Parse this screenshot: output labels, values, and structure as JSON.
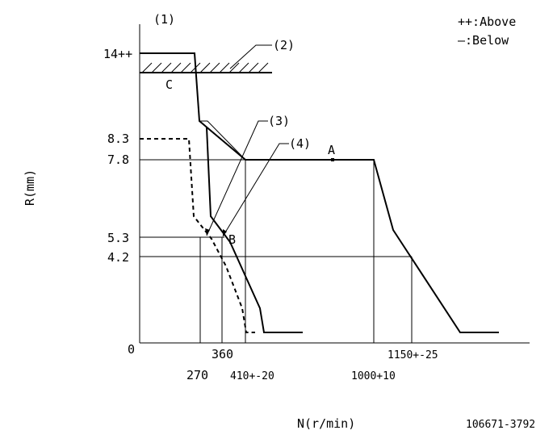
{
  "chart_data": {
    "type": "line",
    "xlabel": "N(r/min)",
    "ylabel": "R(mm)",
    "legend": {
      "above": "++:Above",
      "below": "—:Below"
    },
    "callouts": {
      "c1": "(1)",
      "c2": "(2)",
      "c3": "(3)",
      "c4": "(4)"
    },
    "points": {
      "A": "A",
      "B": "B",
      "C": "C"
    },
    "y_ticks": {
      "t14": "14++",
      "t83": "8.3",
      "t78": "7.8",
      "t53": "5.3",
      "t42": "4.2",
      "t0": "0"
    },
    "x_ticks": {
      "n270": "270",
      "n360": "360",
      "n410": "410+-20",
      "n1000": "1000+10",
      "n1150": "1150+-25"
    },
    "series": [
      {
        "name": "Above",
        "style": "solid",
        "x": [
          0,
          220,
          240,
          300,
          410,
          1000,
          1070,
          1350,
          1470
        ],
        "y": [
          14,
          14,
          9,
          7.8,
          7.8,
          7.8,
          5.3,
          0.3,
          0.3
        ]
      },
      {
        "name": "Below",
        "style": "dashed",
        "x": [
          0,
          200,
          215,
          260,
          320,
          400,
          460
        ],
        "y": [
          8.3,
          8.3,
          5.8,
          5.3,
          4.2,
          1.5,
          0.3
        ]
      }
    ]
  },
  "footer": {
    "drawing_number": "106671-3792"
  }
}
